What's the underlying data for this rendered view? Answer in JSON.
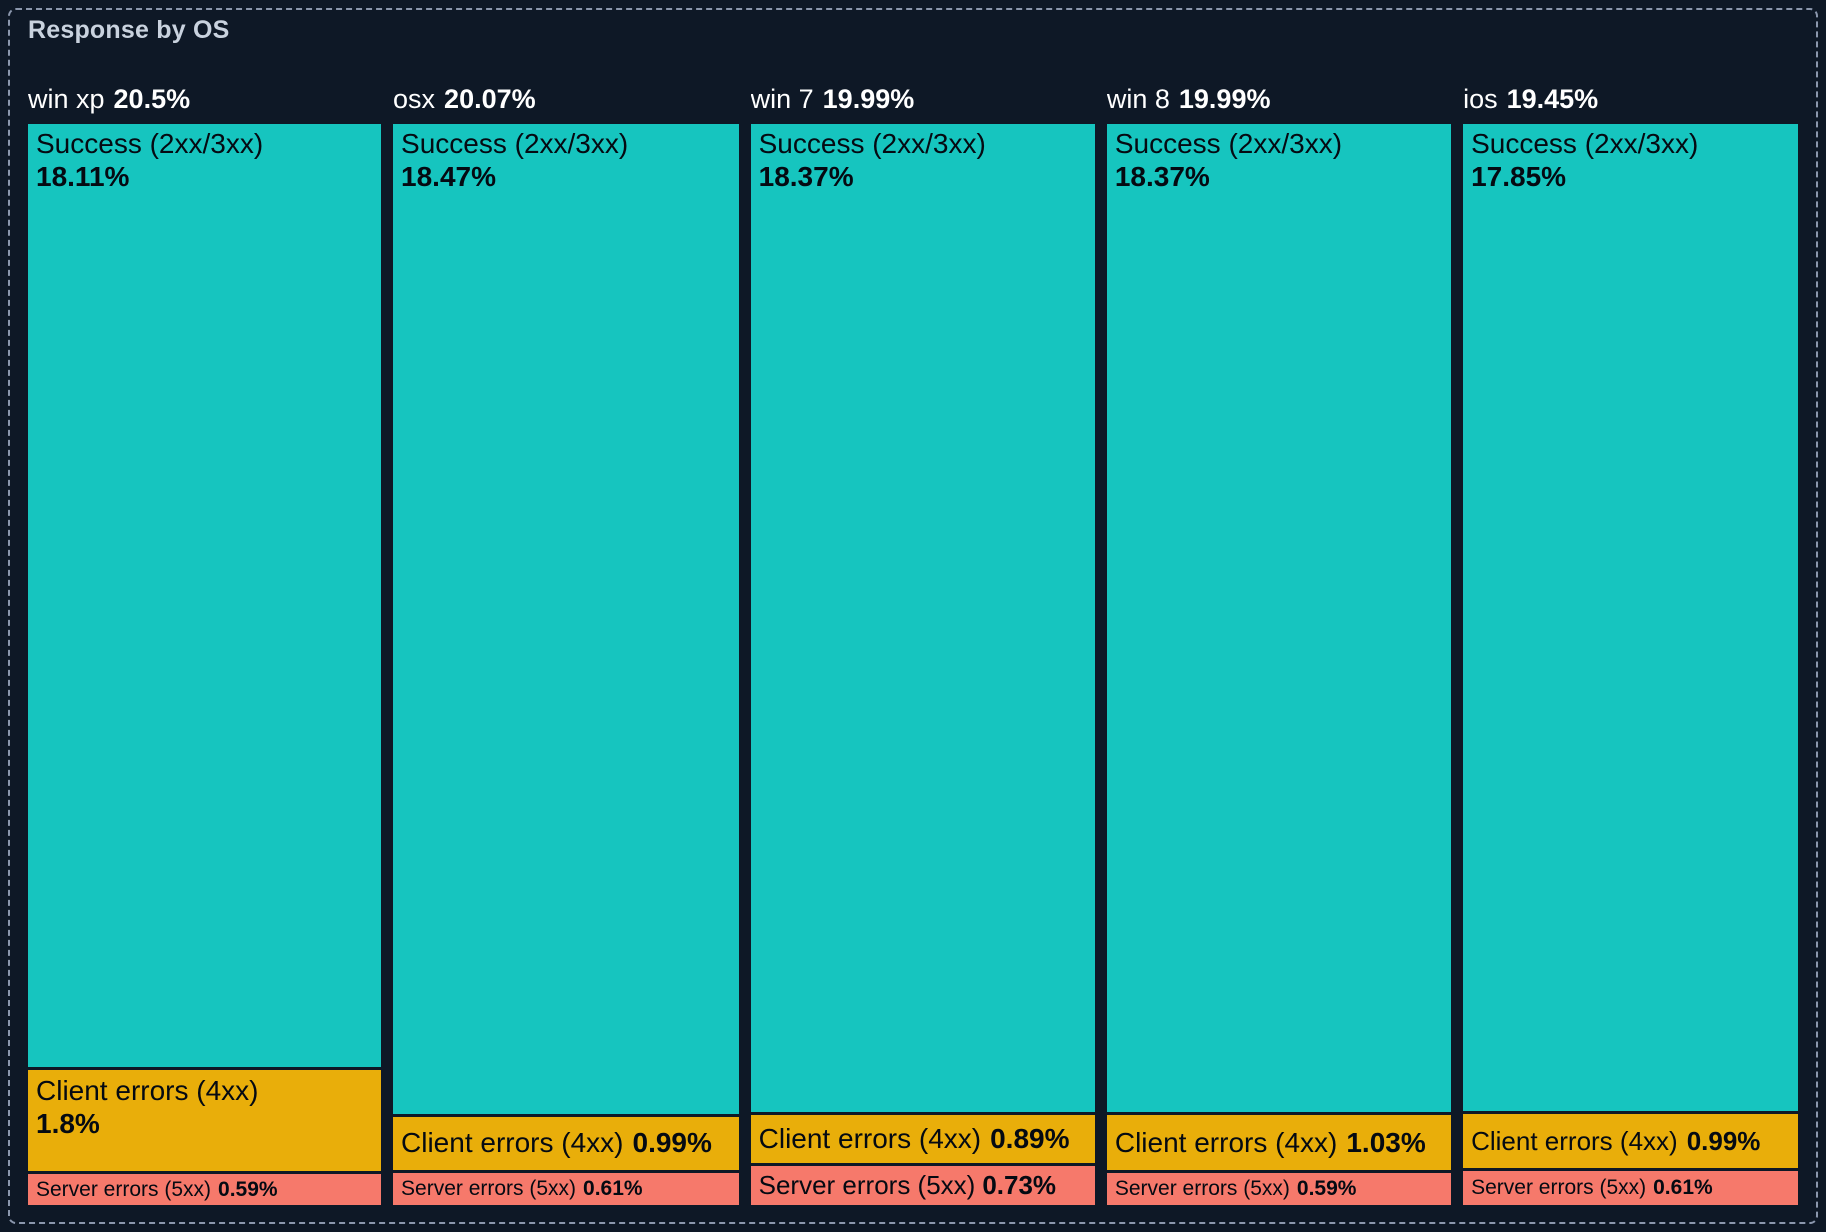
{
  "title": "Response by OS",
  "colors": {
    "background": "#0E1826",
    "panel_border": "#8B97AD",
    "title_text": "#C9D2DE",
    "header_text": "#FFFFFF",
    "segment_text": "#050A12",
    "success": "#16C5BF",
    "client_errors": "#E9AE0A",
    "server_errors": "#F6796B"
  },
  "chart_data": {
    "type": "treemap",
    "title": "Response by OS",
    "categories": [
      "win xp",
      "osx",
      "win 7",
      "win 8",
      "ios"
    ],
    "totals": [
      20.5,
      20.07,
      19.99,
      19.99,
      19.45
    ],
    "series": [
      {
        "name": "Success (2xx/3xx)",
        "values": [
          18.11,
          18.47,
          18.37,
          18.37,
          17.85
        ]
      },
      {
        "name": "Client errors (4xx)",
        "values": [
          1.8,
          0.99,
          0.89,
          1.03,
          0.99
        ]
      },
      {
        "name": "Server errors (5xx)",
        "values": [
          0.59,
          0.61,
          0.73,
          0.59,
          0.61
        ]
      }
    ],
    "legend_position": "none",
    "grid": false,
    "value_format": "percent"
  },
  "columns": [
    {
      "os": "win xp",
      "total_label": "20.5%",
      "segments": [
        {
          "name": "Success (2xx/3xx)",
          "value_label": "18.11%"
        },
        {
          "name": "Client errors (4xx)",
          "value_label": "1.8%"
        },
        {
          "name": "Server errors (5xx)",
          "value_label": "0.59%"
        }
      ]
    },
    {
      "os": "osx",
      "total_label": "20.07%",
      "segments": [
        {
          "name": "Success (2xx/3xx)",
          "value_label": "18.47%"
        },
        {
          "name": "Client errors (4xx)",
          "value_label": "0.99%"
        },
        {
          "name": "Server errors (5xx)",
          "value_label": "0.61%"
        }
      ]
    },
    {
      "os": "win 7",
      "total_label": "19.99%",
      "segments": [
        {
          "name": "Success (2xx/3xx)",
          "value_label": "18.37%"
        },
        {
          "name": "Client errors (4xx)",
          "value_label": "0.89%"
        },
        {
          "name": "Server errors (5xx)",
          "value_label": "0.73%"
        }
      ]
    },
    {
      "os": "win 8",
      "total_label": "19.99%",
      "segments": [
        {
          "name": "Success (2xx/3xx)",
          "value_label": "18.37%"
        },
        {
          "name": "Client errors (4xx)",
          "value_label": "1.03%"
        },
        {
          "name": "Server errors (5xx)",
          "value_label": "0.59%"
        }
      ]
    },
    {
      "os": "ios",
      "total_label": "19.45%",
      "segments": [
        {
          "name": "Success (2xx/3xx)",
          "value_label": "17.85%"
        },
        {
          "name": "Client errors (4xx)",
          "value_label": "0.99%"
        },
        {
          "name": "Server errors (5xx)",
          "value_label": "0.61%"
        }
      ]
    }
  ]
}
